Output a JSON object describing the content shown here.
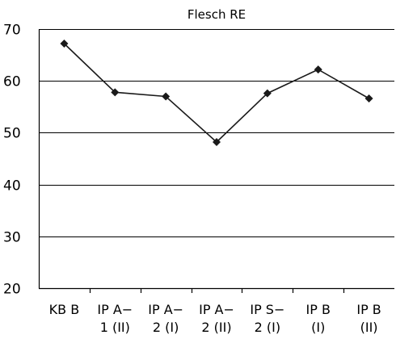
{
  "chart_data": {
    "type": "line",
    "title": "Flesch RE",
    "xlabel": "",
    "ylabel": "",
    "ylim": [
      20,
      70
    ],
    "yticks": [
      20,
      30,
      40,
      50,
      60,
      70
    ],
    "grid": true,
    "categories": [
      [
        "KB B"
      ],
      [
        "IP A−",
        "1 (II)"
      ],
      [
        "IP A−",
        "2 (I)"
      ],
      [
        "IP A−",
        "2 (II)"
      ],
      [
        "IP S−",
        "2 (I)"
      ],
      [
        "IP B",
        "(I)"
      ],
      [
        "IP B",
        "(II)"
      ]
    ],
    "series": [
      {
        "values": [
          67.2,
          57.8,
          57.0,
          48.2,
          57.6,
          62.2,
          56.6
        ],
        "color": "#1a1a1a",
        "marker": "diamond"
      }
    ]
  }
}
